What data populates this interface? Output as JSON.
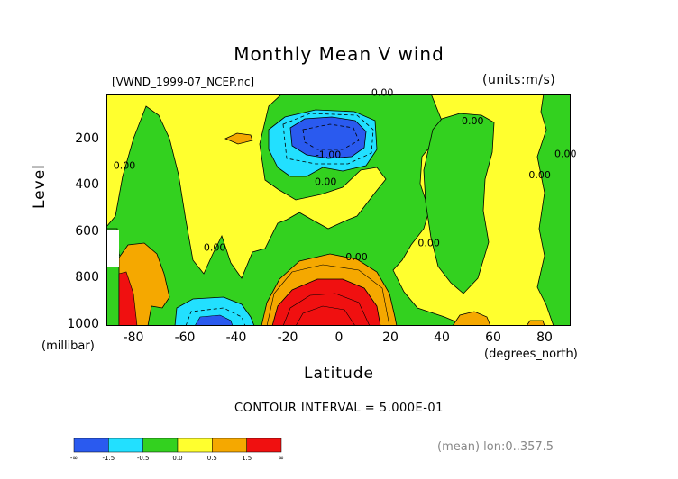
{
  "chart_data": {
    "type": "heatmap",
    "title": "Monthly Mean V wind",
    "file_label": "[VWND_1999-07_NCEP.nc]",
    "units_label": "(units:m/s)",
    "ylabel": "Level",
    "y_unit_label": "(millibar)",
    "xlabel": "Latitude",
    "x_unit_label": "(degrees_north)",
    "xlim": [
      -90,
      90
    ],
    "ylim": [
      1000,
      10
    ],
    "x_ticks": [
      "-80",
      "-60",
      "-40",
      "-20",
      "0",
      "20",
      "40",
      "60",
      "80"
    ],
    "y_ticks": [
      "200",
      "400",
      "600",
      "800",
      "1000"
    ],
    "contour_interval_text": "CONTOUR INTERVAL = 5.000E-01",
    "footer_text": "(mean) lon:0..357.5",
    "contour_labels": [
      {
        "text": "0.00",
        "lat": 17,
        "level": 20
      },
      {
        "text": "0.00",
        "lat": 52,
        "level": 140
      },
      {
        "text": "-1.00",
        "lat": -4,
        "level": 285
      },
      {
        "text": "0.00",
        "lat": -5,
        "level": 400
      },
      {
        "text": "0.00",
        "lat": -83,
        "level": 330
      },
      {
        "text": "0.00",
        "lat": 78,
        "level": 370
      },
      {
        "text": "0.00",
        "lat": 88,
        "level": 280
      },
      {
        "text": "0.00",
        "lat": 35,
        "level": 660
      },
      {
        "text": "0.00",
        "lat": -48,
        "level": 680
      },
      {
        "text": "0.00",
        "lat": 7,
        "level": 720
      }
    ],
    "colorbar": {
      "colors": [
        "#2a5aef",
        "#22e0ff",
        "#33d11f",
        "#ffff2e",
        "#f5a800",
        "#f01010"
      ],
      "tick_labels": [
        "-∞",
        "-1.5",
        "-0.5",
        "0.0",
        "0.5",
        "1.5",
        "∞"
      ]
    }
  }
}
